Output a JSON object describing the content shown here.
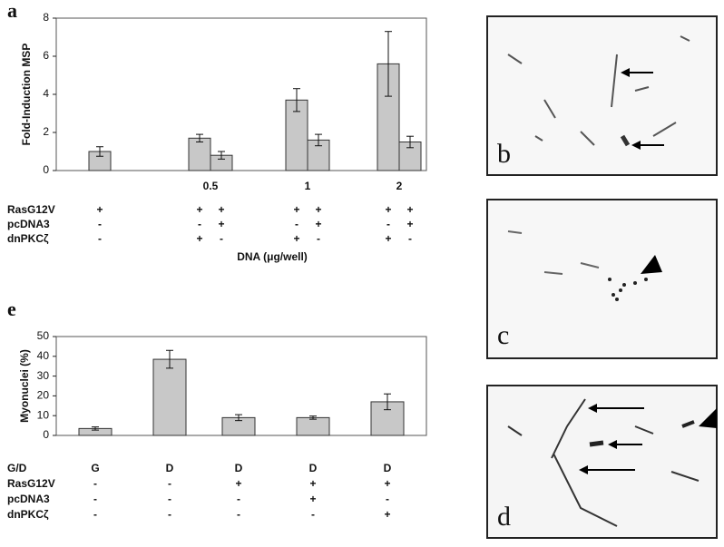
{
  "chart_data": [
    {
      "type": "bar",
      "panel": "a",
      "y_label": "Fold-Induction MSP",
      "x_label": "DNA (μg/well)",
      "ylim": [
        0,
        8
      ],
      "yticks": [
        0,
        2,
        4,
        6,
        8
      ],
      "color": "#c8c8c8",
      "groups": [
        {
          "label": null,
          "values": [
            1.0
          ],
          "errors": [
            0.25
          ]
        },
        {
          "label": "0.5",
          "values": [
            1.7,
            0.8
          ],
          "errors": [
            0.2,
            0.2
          ]
        },
        {
          "label": "1",
          "values": [
            3.7,
            1.6
          ],
          "errors": [
            0.6,
            0.3
          ]
        },
        {
          "label": "2",
          "values": [
            5.6,
            1.5
          ],
          "errors": [
            1.7,
            0.3
          ]
        }
      ],
      "conditions": [
        {
          "label": "RasG12V",
          "cells": [
            "+",
            "+",
            "+",
            "+",
            "+",
            "+",
            "+"
          ]
        },
        {
          "label": "pcDNA3",
          "cells": [
            "-",
            "-",
            "+",
            "-",
            "+",
            "-",
            "+"
          ]
        },
        {
          "label": "dnPKCζ",
          "cells": [
            "-",
            "+",
            "-",
            "+",
            "-",
            "+",
            "-"
          ]
        }
      ]
    },
    {
      "type": "bar",
      "panel": "e",
      "y_label": "Myonuclei (%)",
      "ylim": [
        0,
        50
      ],
      "yticks": [
        0,
        10,
        20,
        30,
        40,
        50
      ],
      "color": "#c8c8c8",
      "values": [
        3.5,
        38.5,
        9,
        9,
        17
      ],
      "errors": [
        0.8,
        4.5,
        1.5,
        0.8,
        4
      ],
      "conditions": [
        {
          "label": "G/D",
          "cells": [
            "G",
            "D",
            "D",
            "D",
            "D"
          ]
        },
        {
          "label": "RasG12V",
          "cells": [
            "-",
            "-",
            "+",
            "+",
            "+"
          ]
        },
        {
          "label": "pcDNA3",
          "cells": [
            "-",
            "-",
            "-",
            "+",
            "-"
          ]
        },
        {
          "label": "dnPKCζ",
          "cells": [
            "-",
            "-",
            "-",
            "-",
            "+"
          ]
        }
      ]
    }
  ],
  "micrographs": [
    "b",
    "c",
    "d"
  ]
}
